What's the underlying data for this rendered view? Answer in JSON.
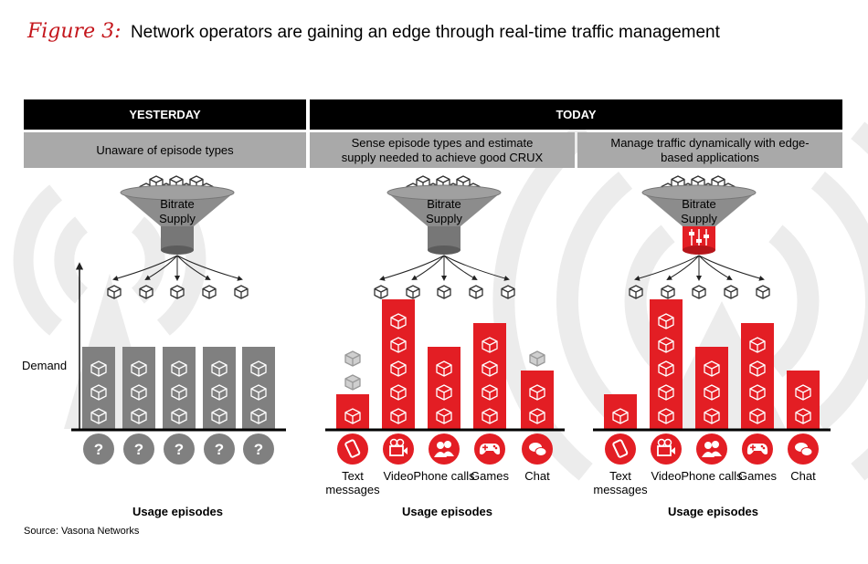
{
  "figure_label": "Figure 3:",
  "title": "Network operators are gaining an edge through real-time traffic management",
  "headers": {
    "yesterday": "YESTERDAY",
    "today": "TODAY"
  },
  "subheaders": [
    "Unaware of episode types",
    "Sense episode types and estimate supply needed to achieve good CRUX",
    "Manage traffic dynamically with edge-based applications"
  ],
  "funnel_label": "Bitrate Supply",
  "axis_label": "Demand",
  "unknown_symbol": "?",
  "categories": [
    "Text messages",
    "Video",
    "Phone calls",
    "Games",
    "Chat"
  ],
  "usage_label": "Usage episodes",
  "source": "Source: Vasona Networks",
  "panels": [
    {
      "name": "yesterday",
      "demand_boxes": [
        3,
        3,
        3,
        3,
        3
      ],
      "extra_boxes": [
        0,
        0,
        0,
        0,
        0
      ]
    },
    {
      "name": "today-sense",
      "demand_boxes": [
        1,
        5,
        3,
        4,
        2
      ],
      "extra_boxes": [
        2,
        0,
        0,
        0,
        1
      ]
    },
    {
      "name": "today-manage",
      "demand_boxes": [
        1,
        5,
        3,
        4,
        2
      ],
      "extra_boxes": [
        0,
        0,
        0,
        0,
        0
      ]
    }
  ],
  "colors": {
    "accent": "#e31e24",
    "dark_gray": "#808080",
    "light_gray": "#a9a9a9",
    "bg_gray": "#ececec"
  }
}
